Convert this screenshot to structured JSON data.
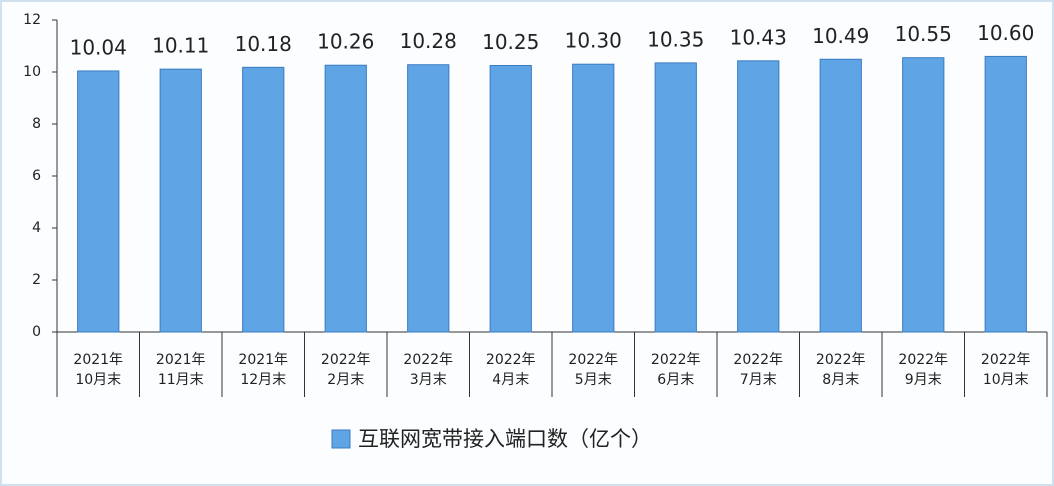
{
  "chart_data": {
    "type": "bar",
    "categories": [
      "2021年\n10月末",
      "2021年\n11月末",
      "2021年\n12月末",
      "2022年\n2月末",
      "2022年\n3月末",
      "2022年\n4月末",
      "2022年\n5月末",
      "2022年\n6月末",
      "2022年\n7月末",
      "2022年\n8月末",
      "2022年\n9月末",
      "2022年\n10月末"
    ],
    "series": [
      {
        "name": "互联网宽带接入端口数（亿个）",
        "color": "#5fa5e6",
        "values": [
          10.04,
          10.11,
          10.18,
          10.26,
          10.28,
          10.25,
          10.3,
          10.35,
          10.43,
          10.49,
          10.55,
          10.6
        ],
        "value_labels": [
          "10.04",
          "10.11",
          "10.18",
          "10.26",
          "10.28",
          "10.25",
          "10.30",
          "10.35",
          "10.43",
          "10.49",
          "10.55",
          "10.60"
        ]
      }
    ],
    "ylim": [
      0,
      12
    ],
    "yticks": [
      0,
      2,
      4,
      6,
      8,
      10,
      12
    ]
  }
}
